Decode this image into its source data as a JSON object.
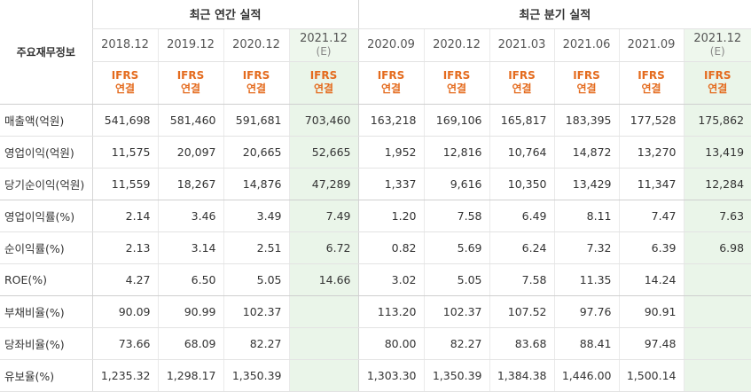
{
  "header": {
    "corner_label": "주요재무정보",
    "annual_title": "최근 연간 실적",
    "quarterly_title": "최근 분기 실적"
  },
  "periods": [
    {
      "label": "2018.12",
      "estimate": ""
    },
    {
      "label": "2019.12",
      "estimate": ""
    },
    {
      "label": "2020.12",
      "estimate": ""
    },
    {
      "label": "2021.12",
      "estimate": "(E)"
    },
    {
      "label": "2020.09",
      "estimate": ""
    },
    {
      "label": "2020.12",
      "estimate": ""
    },
    {
      "label": "2021.03",
      "estimate": ""
    },
    {
      "label": "2021.06",
      "estimate": ""
    },
    {
      "label": "2021.09",
      "estimate": ""
    },
    {
      "label": "2021.12",
      "estimate": "(E)"
    }
  ],
  "accounting": {
    "line1": "IFRS",
    "line2": "연결"
  },
  "rows": [
    {
      "name": "매출액(억원)",
      "values": [
        "541,698",
        "581,460",
        "591,681",
        "703,460",
        "163,218",
        "169,106",
        "165,817",
        "183,395",
        "177,528",
        "175,862"
      ]
    },
    {
      "name": "영업이익(억원)",
      "values": [
        "11,575",
        "20,097",
        "20,665",
        "52,665",
        "1,952",
        "12,816",
        "10,764",
        "14,872",
        "13,270",
        "13,419"
      ]
    },
    {
      "name": "당기순이익(억원)",
      "values": [
        "11,559",
        "18,267",
        "14,876",
        "47,289",
        "1,337",
        "9,616",
        "10,350",
        "13,429",
        "11,347",
        "12,284"
      ]
    },
    {
      "name": "영업이익률(%)",
      "values": [
        "2.14",
        "3.46",
        "3.49",
        "7.49",
        "1.20",
        "7.58",
        "6.49",
        "8.11",
        "7.47",
        "7.63"
      ]
    },
    {
      "name": "순이익률(%)",
      "values": [
        "2.13",
        "3.14",
        "2.51",
        "6.72",
        "0.82",
        "5.69",
        "6.24",
        "7.32",
        "6.39",
        "6.98"
      ]
    },
    {
      "name": "ROE(%)",
      "values": [
        "4.27",
        "6.50",
        "5.05",
        "14.66",
        "3.02",
        "5.05",
        "7.58",
        "11.35",
        "14.24",
        ""
      ]
    },
    {
      "name": "부채비율(%)",
      "values": [
        "90.09",
        "90.99",
        "102.37",
        "",
        "113.20",
        "102.37",
        "107.52",
        "97.76",
        "90.91",
        ""
      ]
    },
    {
      "name": "당좌비율(%)",
      "values": [
        "73.66",
        "68.09",
        "82.27",
        "",
        "80.00",
        "82.27",
        "83.68",
        "88.41",
        "97.48",
        ""
      ]
    },
    {
      "name": "유보율(%)",
      "values": [
        "1,235.32",
        "1,298.17",
        "1,350.39",
        "",
        "1,303.30",
        "1,350.39",
        "1,384.38",
        "1,446.00",
        "1,500.14",
        ""
      ]
    }
  ],
  "colors": {
    "ifrs_text": "#e46b1e",
    "estimate_bg": "#eaf5e9"
  }
}
